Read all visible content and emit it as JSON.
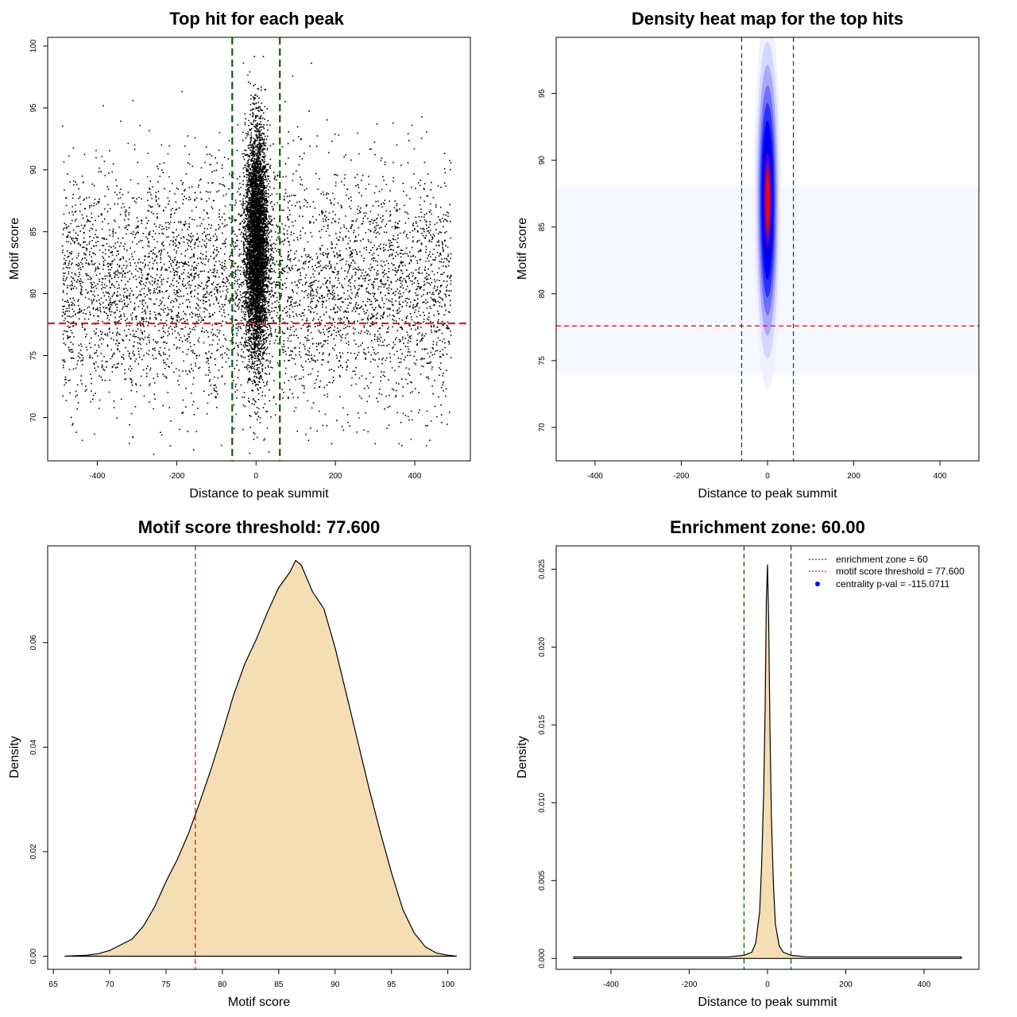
{
  "colors": {
    "threshold_line": "#e31a1c",
    "zone_line": "#006400",
    "density_fill": "#f5deb3",
    "heat_low": "#ffffff",
    "heat_mid": "#0000ff",
    "heat_high": "#ff0000",
    "points": "#000000"
  },
  "chart_data": [
    {
      "type": "scatter",
      "title": "Top hit for each peak",
      "xlabel": "Distance to peak summit",
      "ylabel": "Motif score",
      "xlim": [
        -525,
        540
      ],
      "ylim": [
        66.5,
        100.7
      ],
      "xticks": [
        -400,
        -200,
        0,
        200,
        400
      ],
      "yticks": [
        70,
        75,
        80,
        85,
        90,
        95,
        100
      ],
      "background_points": {
        "x_range": [
          -490,
          490
        ],
        "y_center": 80.5,
        "y_sd": 4.8,
        "count": 5200
      },
      "central_points": {
        "x_center": 0,
        "x_sd": 14,
        "y_center": 84,
        "y_sd": 4.6,
        "count": 9000
      },
      "hlines": [
        {
          "y": 77.6,
          "color": "red",
          "style": "dashed"
        }
      ],
      "vlines": [
        {
          "x": -60,
          "color": "green",
          "style": "dashed"
        },
        {
          "x": 60,
          "color": "green",
          "style": "dashed"
        }
      ],
      "grid": false
    },
    {
      "type": "heatmap",
      "title": "Density heat map for the top hits",
      "xlabel": "Distance to peak summit",
      "ylabel": "Motif score",
      "xlim": [
        -490,
        490
      ],
      "ylim": [
        67.5,
        99.2
      ],
      "xticks": [
        -400,
        -200,
        0,
        200,
        400
      ],
      "yticks": [
        70,
        75,
        80,
        85,
        90,
        95
      ],
      "density_peak": {
        "x": 0,
        "y": 87,
        "x_spread": 10,
        "y_spread": 4.5
      },
      "colorscale": [
        "white",
        "blue",
        "red"
      ],
      "hlines": [
        {
          "y": 77.6,
          "color": "red",
          "style": "dashed"
        }
      ],
      "vlines": [
        {
          "x": -60,
          "color": "green",
          "style": "dashed"
        },
        {
          "x": 60,
          "color": "green",
          "style": "dashed"
        }
      ],
      "grid": false
    },
    {
      "type": "area",
      "title": "Motif score threshold: 77.600",
      "xlabel": "Motif score",
      "ylabel": "Density",
      "xlim": [
        64.5,
        102
      ],
      "ylim": [
        -0.0025,
        0.0785
      ],
      "xticks": [
        65,
        70,
        75,
        80,
        85,
        90,
        95,
        100
      ],
      "yticks": [
        0.0,
        0.02,
        0.04,
        0.06
      ],
      "ytick_labels": [
        "0.00",
        "0.02",
        "0.04",
        "0.06"
      ],
      "x": [
        66,
        68,
        69,
        70,
        71,
        72,
        73,
        74,
        75,
        76,
        77,
        78,
        79,
        80,
        81,
        82,
        83,
        84,
        85,
        86,
        86.5,
        87,
        88,
        89,
        90,
        91,
        92,
        93,
        94,
        95,
        96,
        97,
        98,
        99,
        100,
        100.8
      ],
      "y": [
        0.0,
        0.0002,
        0.0005,
        0.0011,
        0.0022,
        0.0033,
        0.0058,
        0.0095,
        0.0143,
        0.0185,
        0.0235,
        0.0295,
        0.0358,
        0.0427,
        0.05,
        0.056,
        0.0606,
        0.0658,
        0.0705,
        0.0735,
        0.0757,
        0.0748,
        0.0697,
        0.0665,
        0.059,
        0.0502,
        0.0412,
        0.0322,
        0.0238,
        0.016,
        0.009,
        0.0045,
        0.0018,
        0.0006,
        0.0002,
        0.0
      ],
      "vlines": [
        {
          "x": 77.6,
          "color": "red",
          "style": "dashed"
        }
      ],
      "grid": false
    },
    {
      "type": "area",
      "title": "Enrichment zone: 60.00",
      "xlabel": "Distance to peak summit",
      "ylabel": "Density",
      "xlim": [
        -540,
        540
      ],
      "ylim": [
        -0.0007,
        0.0265
      ],
      "xticks": [
        -400,
        -200,
        0,
        200,
        400
      ],
      "yticks": [
        0.0,
        0.005,
        0.01,
        0.015,
        0.02,
        0.025
      ],
      "ytick_labels": [
        "0.000",
        "0.005",
        "0.010",
        "0.015",
        "0.020",
        "0.025"
      ],
      "x": [
        -495,
        -400,
        -300,
        -200,
        -100,
        -60,
        -40,
        -30,
        -20,
        -15,
        -10,
        -6,
        -3,
        0,
        3,
        6,
        10,
        15,
        20,
        30,
        40,
        60,
        100,
        200,
        300,
        400,
        495
      ],
      "y": [
        0.0001,
        0.0001,
        0.0001,
        0.0001,
        0.0001,
        0.0002,
        0.0004,
        0.001,
        0.003,
        0.006,
        0.0105,
        0.016,
        0.023,
        0.0253,
        0.0215,
        0.015,
        0.009,
        0.0048,
        0.0022,
        0.0008,
        0.0004,
        0.0002,
        0.0001,
        0.0001,
        0.0001,
        0.0001,
        0.0001
      ],
      "vlines": [
        {
          "x": -60,
          "color": "green",
          "style": "dashed"
        },
        {
          "x": 60,
          "color": "green",
          "style": "dashed"
        }
      ],
      "legend": {
        "placement": "top-right",
        "entries": [
          {
            "label": "enrichment zone = 60",
            "kind": "dotted-line",
            "color": "green"
          },
          {
            "label": "motif score threshold = 77.600",
            "kind": "dotted-line",
            "color": "red"
          },
          {
            "label": "centrality p-val = -115.0711",
            "kind": "point",
            "color": "blue"
          }
        ]
      },
      "grid": false
    }
  ]
}
